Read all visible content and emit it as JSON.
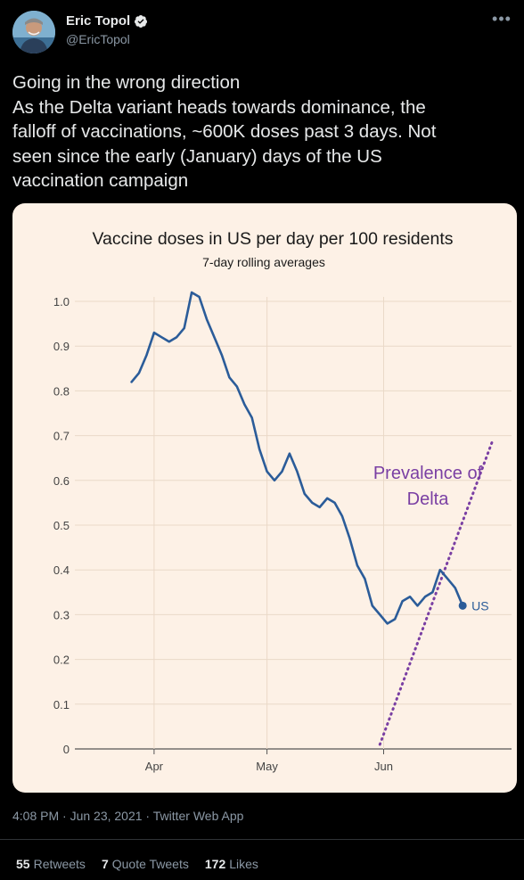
{
  "author": {
    "name": "Eric Topol",
    "handle": "@EricTopol",
    "icons": {
      "verified": "verified-badge-icon",
      "more": "more-options-icon"
    }
  },
  "tweet": {
    "lines": [
      "Going in the wrong direction",
      "As the Delta variant heads towards dominance, the",
      "falloff of vaccinations, ~600K doses past 3 days. Not",
      "seen since the early (January) days of the US",
      "vaccination campaign"
    ],
    "meta": "4:08 PM · Jun 23, 2021 · Twitter Web App"
  },
  "stats": {
    "retweets_count": "55",
    "retweets_label": "Retweets",
    "quotes_count": "7",
    "quotes_label": "Quote Tweets",
    "likes_count": "172",
    "likes_label": "Likes"
  },
  "colors": {
    "background": "#000000",
    "chart_bg": "#fdf1e6",
    "line": "#2b5c99",
    "delta": "#7a3fa3"
  },
  "chart_data": {
    "type": "line",
    "title": "Vaccine doses in US per day per 100 residents",
    "subtitle": "7-day rolling averages",
    "xlabel": "",
    "ylabel": "",
    "ylim": [
      0,
      1.0
    ],
    "yticks": [
      "1.0",
      "0.9",
      "0.8",
      "0.7",
      "0.6",
      "0.5",
      "0.4",
      "0.3",
      "0.2",
      "0.1",
      "0"
    ],
    "xticks": [
      "Apr",
      "May",
      "Jun"
    ],
    "series": [
      {
        "name": "US",
        "x": [
          "2021-03-26",
          "2021-03-28",
          "2021-03-30",
          "2021-04-01",
          "2021-04-03",
          "2021-04-05",
          "2021-04-07",
          "2021-04-09",
          "2021-04-11",
          "2021-04-13",
          "2021-04-15",
          "2021-04-17",
          "2021-04-19",
          "2021-04-21",
          "2021-04-23",
          "2021-04-25",
          "2021-04-27",
          "2021-04-29",
          "2021-05-01",
          "2021-05-03",
          "2021-05-05",
          "2021-05-07",
          "2021-05-09",
          "2021-05-11",
          "2021-05-13",
          "2021-05-15",
          "2021-05-17",
          "2021-05-19",
          "2021-05-21",
          "2021-05-23",
          "2021-05-25",
          "2021-05-27",
          "2021-05-29",
          "2021-05-31",
          "2021-06-02",
          "2021-06-04",
          "2021-06-06",
          "2021-06-08",
          "2021-06-10",
          "2021-06-12",
          "2021-06-14",
          "2021-06-16",
          "2021-06-18",
          "2021-06-20",
          "2021-06-22"
        ],
        "y": [
          0.82,
          0.84,
          0.88,
          0.93,
          0.92,
          0.91,
          0.92,
          0.94,
          1.02,
          1.01,
          0.96,
          0.92,
          0.88,
          0.83,
          0.81,
          0.77,
          0.74,
          0.67,
          0.62,
          0.6,
          0.62,
          0.66,
          0.62,
          0.57,
          0.55,
          0.54,
          0.56,
          0.55,
          0.52,
          0.47,
          0.41,
          0.38,
          0.32,
          0.3,
          0.28,
          0.29,
          0.33,
          0.34,
          0.32,
          0.34,
          0.35,
          0.4,
          0.38,
          0.36,
          0.32
        ]
      },
      {
        "name": "Delta",
        "label_lines": [
          "Prevalence of",
          "Delta"
        ],
        "x": [
          "2021-05-31",
          "2021-06-30"
        ],
        "y": [
          0.01,
          0.69
        ]
      }
    ],
    "legend": "end-of-line label"
  }
}
